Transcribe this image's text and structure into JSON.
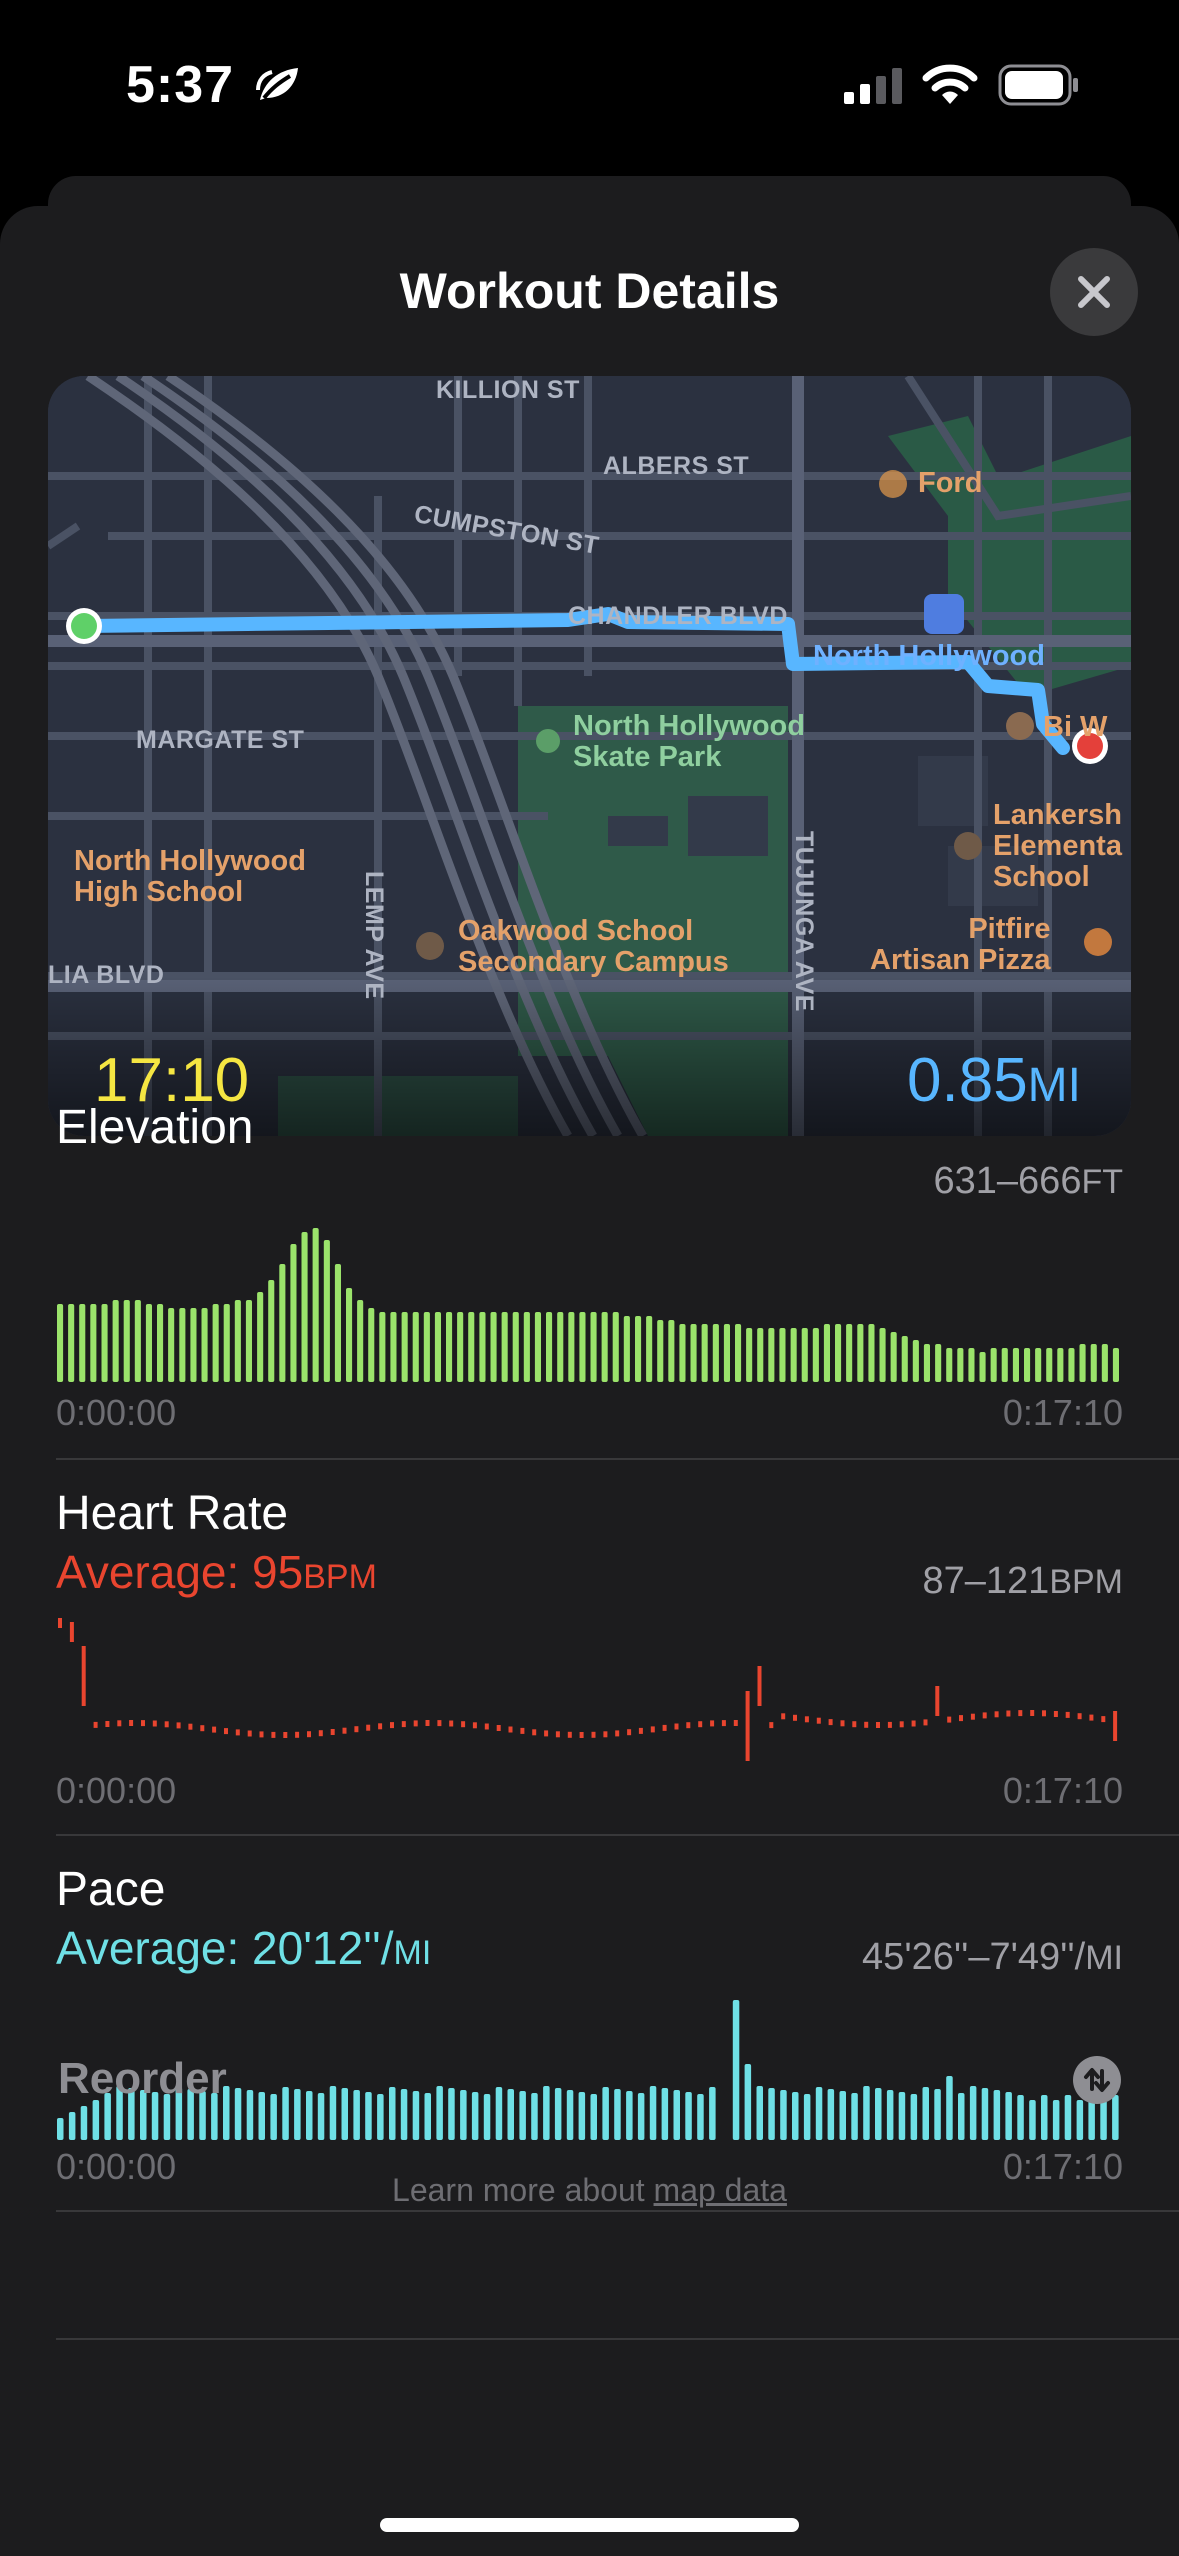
{
  "status_bar": {
    "time": "5:37"
  },
  "sheet": {
    "title": "Workout Details"
  },
  "map": {
    "duration": "17:10",
    "distance_value": "0.85",
    "distance_unit": "MI",
    "streets": {
      "killion": "KILLION ST",
      "albers": "ALBERS ST",
      "cumpston": "CUMPSTON ST",
      "chandler": "CHANDLER BLVD",
      "margate": "MARGATE ST",
      "lemp": "LEMP AVE",
      "tujunga": "TUJUNGA AVE",
      "magnolia": "LIA BLVD"
    },
    "pois": {
      "ford": "Ford",
      "north_hollywood": "North Hollywood",
      "skate_park": "North Hollywood\nSkate Park",
      "high_school": "North Hollywood\nHigh School",
      "oakwood": "Oakwood School\nSecondary Campus",
      "lankershim": "Lankersh\nElementa\nSchool",
      "pitfire": "Pitfire\nArtisan Pizza",
      "bi_w": "Bi W"
    }
  },
  "elevation": {
    "title": "Elevation",
    "range_value": "631–666",
    "range_unit": "FT",
    "start_time": "0:00:00",
    "end_time": "0:17:10",
    "color": "#9be36b"
  },
  "heart_rate": {
    "title": "Heart Rate",
    "average_label": "Average: 95",
    "average_unit": "BPM",
    "range_value": "87–121",
    "range_unit": "BPM",
    "start_time": "0:00:00",
    "end_time": "0:17:10",
    "color": "#e9452f"
  },
  "pace": {
    "title": "Pace",
    "average_label": "Average: 20'12''/",
    "average_unit": "MI",
    "range_value": "45'26''–7'49''/",
    "range_unit": "MI",
    "start_time": "0:00:00",
    "end_time": "0:17:10",
    "color": "#6fe0e6"
  },
  "reorder": {
    "label": "Reorder"
  },
  "footer": {
    "prefix": "Learn more about ",
    "link": "map data"
  },
  "chart_data": [
    {
      "type": "bar",
      "name": "Elevation",
      "x_range": [
        "0:00:00",
        "0:17:10"
      ],
      "ylim": [
        631,
        666
      ],
      "values": [
        647,
        647,
        647,
        647,
        647,
        648,
        648,
        648,
        647,
        647,
        646,
        646,
        646,
        646,
        647,
        647,
        648,
        648,
        650,
        653,
        657,
        662,
        665,
        666,
        663,
        657,
        651,
        648,
        646,
        645,
        645,
        645,
        645,
        645,
        645,
        645,
        645,
        645,
        645,
        645,
        645,
        645,
        645,
        645,
        645,
        645,
        645,
        645,
        645,
        645,
        645,
        644,
        644,
        644,
        643,
        643,
        642,
        642,
        642,
        642,
        642,
        642,
        641,
        641,
        641,
        641,
        641,
        641,
        641,
        642,
        642,
        642,
        642,
        642,
        641,
        640,
        639,
        638,
        637,
        637,
        636,
        636,
        636,
        635,
        636,
        636,
        636,
        636,
        636,
        636,
        636,
        636,
        637,
        637,
        637,
        636
      ]
    },
    {
      "type": "bar",
      "name": "Heart Rate",
      "x_range": [
        "0:00:00",
        "0:17:10"
      ],
      "ylim": [
        87,
        121
      ]
    },
    {
      "type": "bar",
      "name": "Pace",
      "x_range": [
        "0:00:00",
        "0:17:10"
      ],
      "ylim": [
        0,
        100
      ]
    }
  ]
}
